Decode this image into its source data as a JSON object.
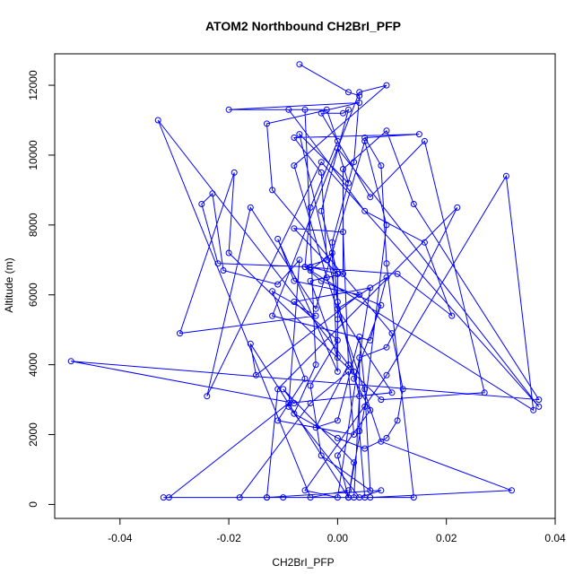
{
  "chart_data": {
    "type": "scatter",
    "mode": "lines+markers",
    "title": "ATOM2 Northbound CH2BrI_PFP",
    "xlabel": "CH2BrI_PFP",
    "ylabel": "Altitude (m)",
    "xlim": [
      -0.052,
      0.04
    ],
    "ylim": [
      -400,
      12900
    ],
    "xticks": [
      -0.04,
      -0.02,
      0.0,
      0.02,
      0.04
    ],
    "xtick_labels": [
      "-0.04",
      "-0.02",
      "0.00",
      "0.02",
      "0.04"
    ],
    "yticks": [
      0,
      2000,
      4000,
      6000,
      8000,
      10000,
      12000
    ],
    "ytick_labels": [
      "0",
      "2000",
      "4000",
      "6000",
      "8000",
      "10000",
      "12000"
    ],
    "grid": false,
    "legend": "none",
    "series": [
      {
        "color": "#0000ff",
        "marker": "open-circle",
        "points": [
          [
            -0.007,
            12600
          ],
          [
            0.002,
            11800
          ],
          [
            0.004,
            11700
          ],
          [
            0.003,
            9800
          ],
          [
            -0.001,
            7500
          ],
          [
            0.0,
            5800
          ],
          [
            0.004,
            3100
          ],
          [
            0.003,
            200
          ],
          [
            -0.01,
            200
          ],
          [
            0.014,
            200
          ],
          [
            0.009,
            6900
          ],
          [
            0.008,
            9700
          ],
          [
            0.005,
            10500
          ],
          [
            0.015,
            10600
          ],
          [
            -0.008,
            10500
          ],
          [
            -0.003,
            9500
          ],
          [
            -0.002,
            7000
          ],
          [
            -0.006,
            6800
          ],
          [
            0.011,
            6600
          ],
          [
            0.021,
            5400
          ],
          [
            0.016,
            7500
          ],
          [
            0.005,
            8400
          ],
          [
            -0.009,
            11300
          ],
          [
            -0.006,
            11300
          ],
          [
            -0.004,
            4000
          ],
          [
            -0.008,
            2600
          ],
          [
            0.0,
            1900
          ],
          [
            0.005,
            1600
          ],
          [
            0.009,
            1900
          ],
          [
            0.011,
            2400
          ],
          [
            0.012,
            3300
          ],
          [
            0.01,
            4900
          ],
          [
            -0.012,
            9000
          ],
          [
            -0.013,
            10900
          ],
          [
            0.004,
            11500
          ],
          [
            -0.02,
            11300
          ],
          [
            -0.002,
            11300
          ],
          [
            0.0,
            10400
          ],
          [
            -0.005,
            8500
          ],
          [
            -0.006,
            6800
          ],
          [
            -0.003,
            6400
          ],
          [
            0.008,
            5700
          ],
          [
            0.003,
            3600
          ],
          [
            0.006,
            2700
          ],
          [
            0.0,
            1400
          ],
          [
            0.002,
            200
          ],
          [
            -0.013,
            200
          ],
          [
            0.005,
            200
          ],
          [
            0.004,
            2100
          ],
          [
            0.004,
            4200
          ],
          [
            0.009,
            4500
          ],
          [
            0.022,
            8500
          ],
          [
            -0.011,
            3300
          ],
          [
            -0.013,
            200
          ],
          [
            0.008,
            400
          ],
          [
            0.004,
            200
          ],
          [
            -0.009,
            2800
          ],
          [
            -0.007,
            7000
          ],
          [
            -0.011,
            6300
          ],
          [
            -0.021,
            6700
          ],
          [
            -0.023,
            8900
          ],
          [
            -0.025,
            8600
          ],
          [
            -0.022,
            6900
          ],
          [
            -0.005,
            6800
          ],
          [
            0.0,
            6600
          ],
          [
            0.0,
            5300
          ],
          [
            0.0,
            4200
          ],
          [
            -0.005,
            6400
          ],
          [
            0.001,
            6600
          ],
          [
            0.001,
            9600
          ],
          [
            0.009,
            10700
          ],
          [
            0.014,
            8600
          ],
          [
            0.037,
            3000
          ],
          [
            -0.049,
            4100
          ],
          [
            -0.008,
            2900
          ],
          [
            -0.01,
            3300
          ],
          [
            0.003,
            1200
          ],
          [
            0.002,
            200
          ],
          [
            -0.032,
            200
          ],
          [
            0.006,
            200
          ],
          [
            0.032,
            400
          ],
          [
            0.008,
            1800
          ],
          [
            -0.002,
            6500
          ],
          [
            -0.008,
            9700
          ],
          [
            0.009,
            12000
          ],
          [
            0.004,
            11800
          ],
          [
            -0.012,
            5400
          ],
          [
            0.006,
            4700
          ],
          [
            0.009,
            6500
          ],
          [
            0.0,
            5600
          ],
          [
            0.01,
            3200
          ],
          [
            -0.009,
            2900
          ],
          [
            -0.031,
            200
          ],
          [
            -0.018,
            200
          ],
          [
            -0.005,
            2900
          ],
          [
            0.002,
            3800
          ],
          [
            0.003,
            2000
          ],
          [
            -0.011,
            2400
          ],
          [
            -0.006,
            3600
          ],
          [
            -0.012,
            6100
          ],
          [
            -0.004,
            5400
          ],
          [
            -0.029,
            4900
          ],
          [
            -0.019,
            9500
          ],
          [
            -0.02,
            7200
          ],
          [
            0.008,
            3000
          ],
          [
            0.027,
            3200
          ],
          [
            0.016,
            10400
          ],
          [
            0.006,
            8800
          ],
          [
            -0.003,
            11200
          ],
          [
            0.001,
            11200
          ],
          [
            0.002,
            11300
          ],
          [
            -0.003,
            8400
          ],
          [
            0.0,
            6600
          ],
          [
            -0.008,
            7900
          ],
          [
            0.001,
            7800
          ],
          [
            0.002,
            4000
          ],
          [
            -0.004,
            2200
          ],
          [
            0.0,
            2400
          ],
          [
            0.004,
            4800
          ],
          [
            0.005,
            3300
          ],
          [
            0.006,
            400
          ],
          [
            -0.003,
            1400
          ],
          [
            -0.005,
            3400
          ],
          [
            0.0,
            4700
          ],
          [
            -0.008,
            5800
          ],
          [
            0.006,
            6200
          ],
          [
            0.0,
            200
          ],
          [
            -0.006,
            400
          ],
          [
            0.009,
            3700
          ],
          [
            0.031,
            9400
          ],
          [
            0.036,
            2700
          ],
          [
            -0.005,
            6700
          ],
          [
            -0.001,
            7200
          ],
          [
            0.0,
            3800
          ],
          [
            -0.011,
            7600
          ],
          [
            -0.008,
            6400
          ],
          [
            0.004,
            6000
          ],
          [
            -0.015,
            3700
          ],
          [
            -0.016,
            4600
          ],
          [
            0.002,
            200
          ],
          [
            0.005,
            2800
          ],
          [
            0.009,
            8000
          ],
          [
            0.005,
            10400
          ],
          [
            -0.004,
            5600
          ],
          [
            -0.016,
            8500
          ],
          [
            -0.024,
            3100
          ],
          [
            -0.003,
            9800
          ],
          [
            0.037,
            2800
          ],
          [
            0.0,
            10200
          ],
          [
            0.002,
            9200
          ],
          [
            -0.007,
            10600
          ],
          [
            0.003,
            3800
          ],
          [
            -0.033,
            11000
          ],
          [
            -0.005,
            200
          ],
          [
            0.002,
            400
          ]
        ]
      }
    ]
  }
}
